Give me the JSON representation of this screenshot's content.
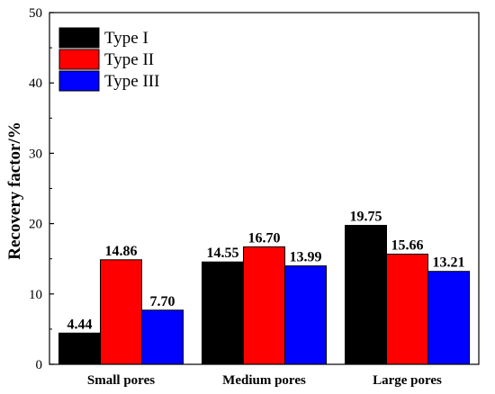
{
  "chart_data": {
    "type": "bar",
    "title": "",
    "xlabel": "",
    "ylabel": "Recovery factor/%",
    "ylim": [
      0,
      50
    ],
    "yticks": [
      0,
      10,
      20,
      30,
      40,
      50
    ],
    "grid": false,
    "legend_position": "top-left",
    "categories": [
      "Small pores",
      "Medium pores",
      "Large pores"
    ],
    "series": [
      {
        "name": "Type I",
        "color": "#000000",
        "values": [
          4.44,
          14.55,
          19.75
        ],
        "labels": [
          "4.44",
          "14.55",
          "19.75"
        ]
      },
      {
        "name": "Type II",
        "color": "#ff0000",
        "values": [
          14.86,
          16.7,
          15.66
        ],
        "labels": [
          "14.86",
          "16.70",
          "15.66"
        ]
      },
      {
        "name": "Type III",
        "color": "#0000ff",
        "values": [
          7.7,
          13.99,
          13.21
        ],
        "labels": [
          "7.70",
          "13.99",
          "13.21"
        ]
      }
    ]
  }
}
